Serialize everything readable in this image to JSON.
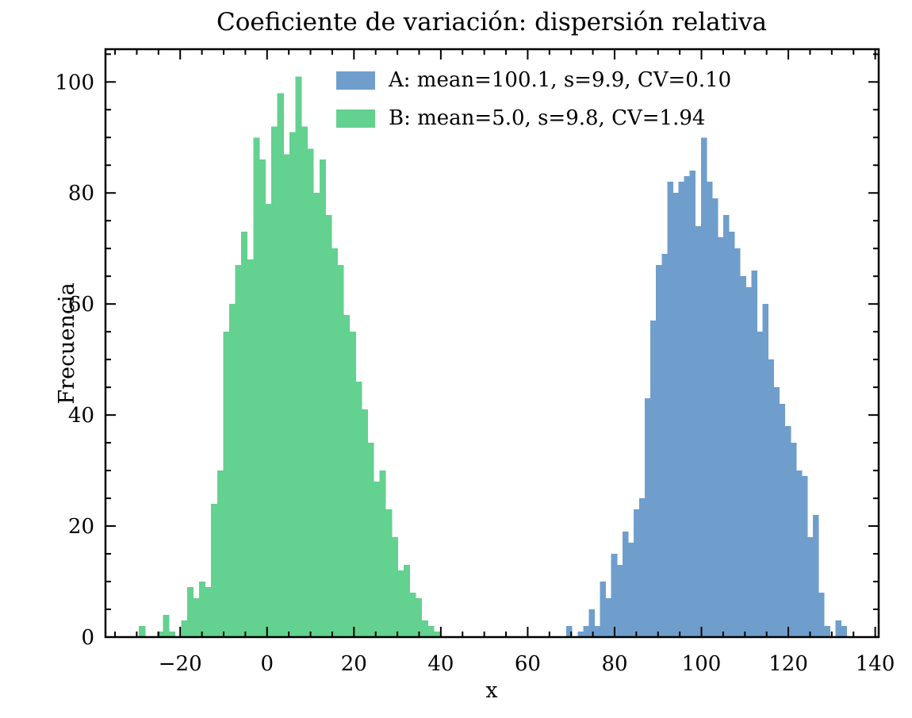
{
  "chart_data": {
    "type": "bar",
    "subtype": "histogram",
    "title": "Coeficiente de variación: dispersión relativa",
    "xlabel": "x",
    "ylabel": "Frecuencia",
    "xlim": [
      -37.2,
      140.8
    ],
    "ylim": [
      0,
      105.9
    ],
    "grid": false,
    "x_major_ticks": [
      -20,
      0,
      20,
      40,
      60,
      80,
      100,
      120,
      140
    ],
    "x_tick_labels": [
      "−20",
      "0",
      "20",
      "40",
      "60",
      "80",
      "100",
      "120",
      "140"
    ],
    "y_major_ticks": [
      0,
      20,
      40,
      60,
      80,
      100
    ],
    "y_tick_labels": [
      "0",
      "20",
      "40",
      "60",
      "80",
      "100"
    ],
    "minor_tick_step": 5,
    "tick_style": "inward ticks on all four spines, minor ticks every 5 units",
    "legend_position": "upper center, no frame",
    "series": [
      {
        "name": "A",
        "label": "A: mean=100.1, s=9.9, CV=0.10",
        "color": "#6f9ecd",
        "bin_start": 68.9,
        "bin_width": 1.29,
        "counts": [
          2,
          0,
          1,
          2,
          5,
          2,
          10,
          7,
          15,
          13,
          19,
          17,
          23,
          25,
          43,
          57,
          67,
          69,
          82,
          80,
          82,
          83,
          84,
          74,
          90,
          82,
          79,
          72,
          76,
          73,
          70,
          65,
          63,
          66,
          55,
          60,
          50,
          45,
          42,
          38,
          35,
          30,
          29,
          18,
          22,
          8,
          2,
          0,
          3,
          2
        ]
      },
      {
        "name": "B",
        "label": "B: mean=5.0, s=9.8, CV=1.94",
        "color": "#63d18f",
        "bin_start": -29.5,
        "bin_width": 1.385,
        "counts": [
          2,
          0,
          0,
          1,
          4,
          1,
          0,
          3,
          9,
          7,
          10,
          9,
          24,
          30,
          55,
          60,
          67,
          73,
          68,
          90,
          86,
          78,
          92,
          98,
          87,
          91,
          101,
          92,
          88,
          80,
          86,
          76,
          70,
          67,
          58,
          55,
          46,
          41,
          35,
          28,
          30,
          23,
          18,
          12,
          13,
          8,
          7,
          3,
          2,
          1
        ]
      }
    ]
  }
}
